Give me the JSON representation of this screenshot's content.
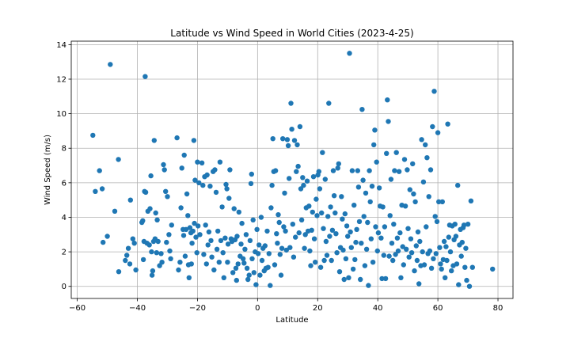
{
  "chart_data": {
    "type": "scatter",
    "title": "Latitude vs Wind Speed in World Cities (2023-4-25)",
    "xlabel": "Latitude",
    "ylabel": "Wind Speed (m/s)",
    "xlim": [
      -62,
      85
    ],
    "ylim": [
      -0.7,
      14.2
    ],
    "xticks": [
      -60,
      -40,
      -20,
      0,
      20,
      40,
      60,
      80
    ],
    "yticks": [
      0,
      2,
      4,
      6,
      8,
      10,
      12,
      14
    ],
    "grid": true,
    "marker_color": "#1f77b4",
    "points": [
      [
        -54.8,
        8.75
      ],
      [
        -54,
        5.5
      ],
      [
        -52.6,
        6.7
      ],
      [
        -51.7,
        5.65
      ],
      [
        -51.4,
        2.55
      ],
      [
        -50,
        2.9
      ],
      [
        -49,
        12.85
      ],
      [
        -47.5,
        4.35
      ],
      [
        -46.3,
        7.35
      ],
      [
        -46.2,
        0.85
      ],
      [
        -44,
        1.5
      ],
      [
        -43.5,
        1.8
      ],
      [
        -43,
        2.2
      ],
      [
        -42.5,
        1.3
      ],
      [
        -42.3,
        5
      ],
      [
        -41.5,
        2.75
      ],
      [
        -41,
        2.5
      ],
      [
        -40.5,
        0.95
      ],
      [
        -38.5,
        3.7
      ],
      [
        -38.2,
        3.8
      ],
      [
        -38,
        1.55
      ],
      [
        -37.8,
        2.6
      ],
      [
        -37.6,
        5.5
      ],
      [
        -37.4,
        12.15
      ],
      [
        -37.2,
        5.45
      ],
      [
        -36.8,
        2.5
      ],
      [
        -36.5,
        4.35
      ],
      [
        -36,
        2.4
      ],
      [
        -35.8,
        4.5
      ],
      [
        -35.5,
        6.4
      ],
      [
        -35.3,
        2
      ],
      [
        -35.1,
        0.65
      ],
      [
        -34.9,
        0.9
      ],
      [
        -34.6,
        2.6
      ],
      [
        -34.4,
        8.45
      ],
      [
        -34.1,
        2.75
      ],
      [
        -33.9,
        4.25
      ],
      [
        -33.6,
        1.95
      ],
      [
        -33.4,
        3.85
      ],
      [
        -33.1,
        2.6
      ],
      [
        -32.6,
        1.2
      ],
      [
        -32.1,
        1.9
      ],
      [
        -31.8,
        1.4
      ],
      [
        -31.3,
        7.05
      ],
      [
        -31,
        6.75
      ],
      [
        -30.6,
        5.5
      ],
      [
        -30.3,
        2.55
      ],
      [
        -30,
        5.2
      ],
      [
        -29.5,
        3
      ],
      [
        -29.2,
        2.05
      ],
      [
        -28.9,
        1.6
      ],
      [
        -28.6,
        3.55
      ],
      [
        -26.8,
        8.6
      ],
      [
        -26.3,
        0.95
      ],
      [
        -25.8,
        1.4
      ],
      [
        -25.5,
        4.55
      ],
      [
        -25.2,
        6.85
      ],
      [
        -24.8,
        3.3
      ],
      [
        -24.6,
        2.95
      ],
      [
        -24.4,
        7.6
      ],
      [
        -24.1,
        1.75
      ],
      [
        -23.8,
        3.3
      ],
      [
        -23.5,
        5.35
      ],
      [
        -23.2,
        4.1
      ],
      [
        -23,
        1.25
      ],
      [
        -22.8,
        0.5
      ],
      [
        -22.5,
        3.4
      ],
      [
        -22.2,
        3.1
      ],
      [
        -22,
        1.3
      ],
      [
        -21.8,
        2.5
      ],
      [
        -21.5,
        3.2
      ],
      [
        -21.2,
        8.45
      ],
      [
        -21,
        3.65
      ],
      [
        -20.8,
        6.15
      ],
      [
        -20.5,
        2.85
      ],
      [
        -20.2,
        1.95
      ],
      [
        -20,
        7.2
      ],
      [
        -19.8,
        3.5
      ],
      [
        -19.5,
        6
      ],
      [
        -19.2,
        3
      ],
      [
        -18.5,
        7.15
      ],
      [
        -18.2,
        5.85
      ],
      [
        -17.9,
        1.85
      ],
      [
        -17.6,
        6.35
      ],
      [
        -17.3,
        3.55
      ],
      [
        -17,
        1.3
      ],
      [
        -16.8,
        6.45
      ],
      [
        -16.5,
        2.4
      ],
      [
        -16.2,
        3.15
      ],
      [
        -15.8,
        5.8
      ],
      [
        -15.5,
        2.65
      ],
      [
        -15.2,
        1.7
      ],
      [
        -14.8,
        6.65
      ],
      [
        -14.5,
        0.95
      ],
      [
        -14.2,
        6.75
      ],
      [
        -13.8,
        5.45
      ],
      [
        -13.5,
        2.15
      ],
      [
        -13.2,
        3.2
      ],
      [
        -12.8,
        1.4
      ],
      [
        -12.5,
        7.2
      ],
      [
        -12.2,
        2.65
      ],
      [
        -11.8,
        4.6
      ],
      [
        -11.5,
        1.95
      ],
      [
        -11.2,
        0.5
      ],
      [
        -10.8,
        2.8
      ],
      [
        -10.5,
        5.9
      ],
      [
        -10.2,
        5.65
      ],
      [
        -10,
        1.4
      ],
      [
        -9.8,
        2.45
      ],
      [
        -9.5,
        5.1
      ],
      [
        -9.2,
        6.75
      ],
      [
        -8.8,
        2.75
      ],
      [
        -8.5,
        2.6
      ],
      [
        -8.2,
        0.8
      ],
      [
        -7.8,
        4.5
      ],
      [
        -7.5,
        2.7
      ],
      [
        -7.2,
        1.05
      ],
      [
        -7,
        0.35
      ],
      [
        -6.8,
        2.9
      ],
      [
        -6.5,
        1.3
      ],
      [
        -6.2,
        4.3
      ],
      [
        -5.8,
        1.75
      ],
      [
        -5.5,
        2.45
      ],
      [
        -5.2,
        3.65
      ],
      [
        -4.8,
        1.6
      ],
      [
        -4.5,
        1.35
      ],
      [
        -4.2,
        2.15
      ],
      [
        -3.8,
        3
      ],
      [
        -3.5,
        1.05
      ],
      [
        -3.2,
        0.4
      ],
      [
        -2.8,
        0.65
      ],
      [
        -2.5,
        2.65
      ],
      [
        -2.2,
        5.95
      ],
      [
        -2,
        6.5
      ],
      [
        -1.8,
        1.6
      ],
      [
        -1.5,
        3.85
      ],
      [
        -1.2,
        0.8
      ],
      [
        -0.8,
        2
      ],
      [
        -0.5,
        0.1
      ],
      [
        -0.2,
        3.3
      ],
      [
        0.2,
        1.9
      ],
      [
        0.5,
        2.4
      ],
      [
        0.8,
        0.65
      ],
      [
        1.2,
        4
      ],
      [
        1.5,
        1.5
      ],
      [
        1.8,
        2.2
      ],
      [
        2.2,
        0.9
      ],
      [
        2.5,
        2.35
      ],
      [
        2.8,
        1.05
      ],
      [
        3.2,
        3.2
      ],
      [
        3.5,
        1.1
      ],
      [
        3.8,
        1.9
      ],
      [
        4.2,
        0.05
      ],
      [
        4.5,
        4.55
      ],
      [
        4.8,
        5.85
      ],
      [
        5.1,
        8.55
      ],
      [
        5.4,
        6.65
      ],
      [
        5.7,
        1.25
      ],
      [
        6,
        6.7
      ],
      [
        6.3,
        3.05
      ],
      [
        6.6,
        2.5
      ],
      [
        6.9,
        4.15
      ],
      [
        7.2,
        3.7
      ],
      [
        7.5,
        1.85
      ],
      [
        7.8,
        0.65
      ],
      [
        8.1,
        2.2
      ],
      [
        8.4,
        8.55
      ],
      [
        8.7,
        3.45
      ],
      [
        9,
        5.4
      ],
      [
        9.3,
        3.2
      ],
      [
        9.6,
        2.1
      ],
      [
        9.9,
        8.5
      ],
      [
        10.2,
        8.15
      ],
      [
        10.5,
        6.25
      ],
      [
        10.8,
        2.25
      ],
      [
        11.1,
        10.6
      ],
      [
        11.4,
        9.1
      ],
      [
        11.7,
        3.6
      ],
      [
        12,
        1.7
      ],
      [
        12.3,
        8.45
      ],
      [
        12.6,
        2.85
      ],
      [
        12.9,
        6.65
      ],
      [
        13.2,
        8.2
      ],
      [
        13.5,
        6.95
      ],
      [
        13.8,
        3.1
      ],
      [
        14.1,
        9.25
      ],
      [
        14.4,
        5.65
      ],
      [
        14.7,
        3.85
      ],
      [
        15,
        6.3
      ],
      [
        15.3,
        5.85
      ],
      [
        15.6,
        2.2
      ],
      [
        15.9,
        3
      ],
      [
        16.2,
        4.55
      ],
      [
        16.5,
        6.1
      ],
      [
        16.8,
        3.2
      ],
      [
        17.1,
        4.65
      ],
      [
        17.4,
        2.05
      ],
      [
        17.7,
        1.2
      ],
      [
        18,
        3.25
      ],
      [
        18.3,
        4.3
      ],
      [
        18.6,
        6.35
      ],
      [
        18.9,
        2.75
      ],
      [
        19.2,
        1.4
      ],
      [
        19.5,
        5.05
      ],
      [
        19.8,
        4.1
      ],
      [
        20.1,
        6.45
      ],
      [
        20.4,
        6.65
      ],
      [
        20.7,
        5.65
      ],
      [
        21,
        1.1
      ],
      [
        21.3,
        4.25
      ],
      [
        21.6,
        7.75
      ],
      [
        21.9,
        3.35
      ],
      [
        22.2,
        1.5
      ],
      [
        22.5,
        6.2
      ],
      [
        22.8,
        2.6
      ],
      [
        23.1,
        1.8
      ],
      [
        23.4,
        4.05
      ],
      [
        23.7,
        10.6
      ],
      [
        24,
        2.9
      ],
      [
        24.3,
        4.6
      ],
      [
        24.6,
        1.5
      ],
      [
        24.9,
        3.25
      ],
      [
        25.2,
        6.7
      ],
      [
        25.5,
        5.25
      ],
      [
        25.8,
        4.25
      ],
      [
        26.1,
        3.05
      ],
      [
        26.4,
        1.95
      ],
      [
        26.7,
        6.85
      ],
      [
        27,
        7.1
      ],
      [
        27.3,
        0.85
      ],
      [
        27.6,
        2.25
      ],
      [
        27.9,
        5.2
      ],
      [
        28.2,
        3.9
      ],
      [
        28.5,
        2.1
      ],
      [
        28.8,
        0.4
      ],
      [
        29.1,
        4.2
      ],
      [
        29.4,
        1.6
      ],
      [
        29.7,
        3.5
      ],
      [
        30,
        2.9
      ],
      [
        30.3,
        0.5
      ],
      [
        30.6,
        13.5
      ],
      [
        30.9,
        3.15
      ],
      [
        31.2,
        2.25
      ],
      [
        31.5,
        6.7
      ],
      [
        31.8,
        1
      ],
      [
        32.1,
        4.7
      ],
      [
        32.4,
        1.55
      ],
      [
        32.7,
        2.55
      ],
      [
        33,
        3.3
      ],
      [
        33.3,
        6.7
      ],
      [
        33.6,
        5.75
      ],
      [
        33.9,
        3.75
      ],
      [
        34.2,
        0.4
      ],
      [
        34.5,
        2.5
      ],
      [
        34.8,
        10.25
      ],
      [
        35.1,
        6.15
      ],
      [
        35.4,
        4.05
      ],
      [
        35.7,
        1.2
      ],
      [
        36,
        5.4
      ],
      [
        36.3,
        2.15
      ],
      [
        36.6,
        3.7
      ],
      [
        36.9,
        0.05
      ],
      [
        37.2,
        6.7
      ],
      [
        37.5,
        4.9
      ],
      [
        37.8,
        2.75
      ],
      [
        38.1,
        5.8
      ],
      [
        38.4,
        1.4
      ],
      [
        38.7,
        8.2
      ],
      [
        39,
        9.05
      ],
      [
        39.3,
        3.45
      ],
      [
        39.6,
        7.2
      ],
      [
        39.9,
        2.05
      ],
      [
        40.2,
        3.1
      ],
      [
        40.5,
        5.7
      ],
      [
        40.8,
        4.65
      ],
      [
        41.1,
        2.8
      ],
      [
        41.4,
        0.45
      ],
      [
        41.7,
        4.6
      ],
      [
        42,
        1.8
      ],
      [
        42.3,
        3.45
      ],
      [
        42.6,
        0.45
      ],
      [
        42.9,
        7.7
      ],
      [
        43.2,
        10.8
      ],
      [
        43.5,
        9.55
      ],
      [
        43.8,
        1.75
      ],
      [
        44.1,
        4.1
      ],
      [
        44.4,
        6.2
      ],
      [
        44.7,
        2.5
      ],
      [
        45,
        1.5
      ],
      [
        45.3,
        3.6
      ],
      [
        45.6,
        6.7
      ],
      [
        45.9,
        1.85
      ],
      [
        46.2,
        7.75
      ],
      [
        46.5,
        2.8
      ],
      [
        46.8,
        2.05
      ],
      [
        47.1,
        6.65
      ],
      [
        47.4,
        3.1
      ],
      [
        47.7,
        0.5
      ],
      [
        48,
        4.7
      ],
      [
        48.3,
        2.3
      ],
      [
        48.6,
        1.25
      ],
      [
        48.9,
        7.35
      ],
      [
        49.2,
        4.65
      ],
      [
        49.5,
        2.15
      ],
      [
        49.8,
        6.75
      ],
      [
        50.1,
        3.35
      ],
      [
        50.4,
        1.7
      ],
      [
        50.7,
        5.6
      ],
      [
        51,
        2.75
      ],
      [
        51.3,
        1.95
      ],
      [
        51.6,
        7.1
      ],
      [
        51.9,
        5.35
      ],
      [
        52.2,
        0.9
      ],
      [
        52.5,
        4.9
      ],
      [
        52.8,
        2.35
      ],
      [
        53.1,
        1.5
      ],
      [
        53.4,
        3.15
      ],
      [
        53.7,
        0.15
      ],
      [
        54,
        2.6
      ],
      [
        54.3,
        1.2
      ],
      [
        54.6,
        8.5
      ],
      [
        54.9,
        2
      ],
      [
        55.2,
        6.05
      ],
      [
        55.5,
        1.25
      ],
      [
        55.8,
        8.2
      ],
      [
        56.1,
        3.45
      ],
      [
        56.4,
        7.45
      ],
      [
        56.7,
        1.9
      ],
      [
        57,
        5.2
      ],
      [
        57.3,
        2.05
      ],
      [
        57.6,
        6.75
      ],
      [
        57.9,
        1.05
      ],
      [
        58.2,
        9.25
      ],
      [
        58.5,
        1.6
      ],
      [
        58.8,
        11.3
      ],
      [
        59.1,
        4.05
      ],
      [
        59.4,
        1.9
      ],
      [
        59.7,
        3.75
      ],
      [
        60,
        8.9
      ],
      [
        60.3,
        4.9
      ],
      [
        60.6,
        2.25
      ],
      [
        60.9,
        1.3
      ],
      [
        61.2,
        1
      ],
      [
        61.5,
        4.9
      ],
      [
        61.8,
        1.55
      ],
      [
        62.1,
        2.6
      ],
      [
        62.4,
        0.5
      ],
      [
        62.7,
        2.3
      ],
      [
        63,
        1.5
      ],
      [
        63.3,
        9.4
      ],
      [
        63.6,
        2.85
      ],
      [
        63.9,
        3.55
      ],
      [
        64.2,
        2
      ],
      [
        64.5,
        0.9
      ],
      [
        64.8,
        3.5
      ],
      [
        65.1,
        1.2
      ],
      [
        65.4,
        2.7
      ],
      [
        65.7,
        3.6
      ],
      [
        66,
        2.9
      ],
      [
        66.3,
        1.3
      ],
      [
        66.6,
        5.85
      ],
      [
        66.9,
        0.1
      ],
      [
        67.2,
        2.4
      ],
      [
        67.5,
        3.3
      ],
      [
        67.8,
        1.75
      ],
      [
        68.1,
        2.55
      ],
      [
        68.4,
        3.4
      ],
      [
        68.7,
        3.55
      ],
      [
        69,
        1.1
      ],
      [
        69.3,
        2.2
      ],
      [
        69.6,
        0.35
      ],
      [
        70,
        3.6
      ],
      [
        70.5,
        0
      ],
      [
        71,
        4.95
      ],
      [
        71.5,
        1.1
      ],
      [
        78.2,
        1
      ]
    ]
  }
}
